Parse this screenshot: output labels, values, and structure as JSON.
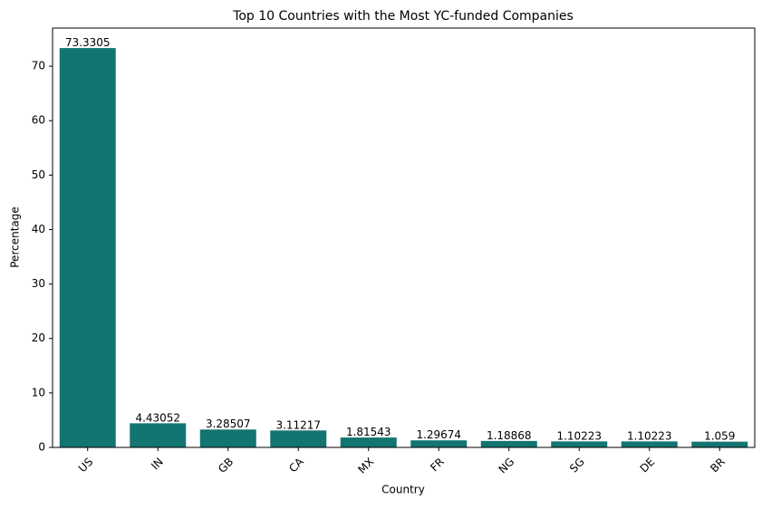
{
  "chart_data": {
    "type": "bar",
    "title": "Top 10 Countries with the Most YC-funded Companies",
    "x_label": "Country",
    "y_label": "Percentage",
    "categories": [
      "US",
      "IN",
      "GB",
      "CA",
      "MX",
      "FR",
      "NG",
      "SG",
      "DE",
      "BR"
    ],
    "values": [
      73.3305,
      4.43052,
      3.28507,
      3.11217,
      1.81543,
      1.29674,
      1.18868,
      1.10223,
      1.10223,
      1.059
    ],
    "color": "#137571",
    "ylim": [
      0,
      77.0
    ],
    "yticks": [
      0,
      10,
      20,
      30,
      40,
      50,
      60,
      70
    ],
    "grid": false
  }
}
